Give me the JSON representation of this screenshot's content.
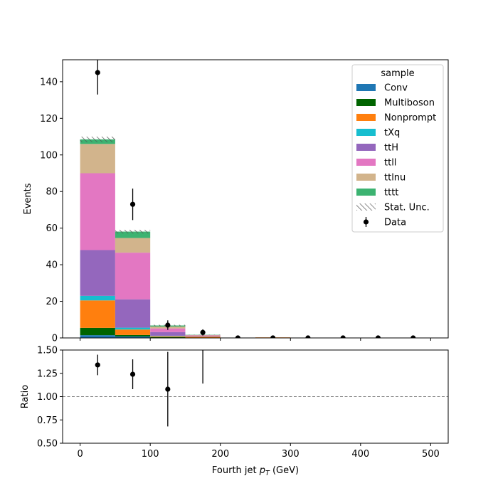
{
  "chart_data": {
    "type": "bar",
    "stacked": true,
    "x_bin_edges": [
      0,
      50,
      100,
      150,
      200,
      250,
      300,
      350,
      400,
      450,
      500
    ],
    "xlabel": "Fourth jet  p_T (GeV)",
    "xlabel_parts": {
      "prefix": "Fourth jet  ",
      "var": "p",
      "sub": "T",
      "suffix": " (GeV)"
    },
    "xlim": [
      -25,
      525
    ],
    "xticks": [
      "0",
      "100",
      "200",
      "300",
      "400",
      "500"
    ],
    "main": {
      "ylabel": "Events",
      "ylim": [
        0,
        152
      ],
      "yticks": [
        "0",
        "20",
        "40",
        "60",
        "80",
        "100",
        "120",
        "140"
      ],
      "legend": {
        "title": "sample",
        "placement": "top-right"
      },
      "series": [
        {
          "name": "Conv",
          "color": "#1f77b4",
          "values": [
            1.5,
            0.8,
            0.2,
            0.05,
            0,
            0,
            0,
            0,
            0,
            0
          ]
        },
        {
          "name": "Multiboson",
          "color": "#006400",
          "values": [
            4.0,
            0.8,
            0.2,
            0.05,
            0,
            0,
            0,
            0,
            0,
            0
          ]
        },
        {
          "name": "Nonprompt",
          "color": "#ff7f0e",
          "values": [
            15.0,
            3.0,
            0.5,
            0.6,
            0.1,
            0.3,
            0,
            0,
            0,
            0
          ]
        },
        {
          "name": "tXq",
          "color": "#17becf",
          "values": [
            2.5,
            1.0,
            0.3,
            0.05,
            0,
            0,
            0,
            0,
            0,
            0
          ]
        },
        {
          "name": "ttH",
          "color": "#9467bd",
          "values": [
            25.0,
            15.5,
            2.0,
            0.3,
            0.1,
            0,
            0,
            0,
            0,
            0
          ]
        },
        {
          "name": "ttll",
          "color": "#e377c2",
          "values": [
            42.0,
            25.5,
            2.0,
            0.3,
            0,
            0,
            0,
            0,
            0,
            0
          ]
        },
        {
          "name": "ttlnu",
          "color": "#d2b48c",
          "values": [
            16.0,
            8.0,
            1.0,
            0.2,
            0,
            0,
            0,
            0,
            0,
            0
          ]
        },
        {
          "name": "tttt",
          "color": "#3cb371",
          "values": [
            2.5,
            3.5,
            0.6,
            0.15,
            0,
            0,
            0,
            0,
            0,
            0
          ]
        }
      ],
      "stat_unc": {
        "name": "Stat. Unc.",
        "values": [
          1.5,
          1.0,
          0.4,
          0.1,
          0,
          0,
          0,
          0,
          0,
          0
        ]
      },
      "data": {
        "name": "Data",
        "x": [
          25,
          75,
          125,
          175,
          225,
          275,
          325,
          375,
          425,
          475
        ],
        "y": [
          145,
          73,
          7,
          3,
          0,
          0,
          0,
          0,
          0,
          0
        ],
        "yerr": [
          12,
          8.6,
          2.6,
          1.7,
          0,
          0,
          0,
          0,
          0,
          0
        ]
      }
    },
    "ratio": {
      "ylabel": "Ratio",
      "ylim": [
        0.5,
        1.5
      ],
      "yticks": [
        "0.50",
        "0.75",
        "1.00",
        "1.25",
        "1.50"
      ],
      "reference_line": 1.0,
      "points": {
        "x": [
          25,
          75,
          125,
          175
        ],
        "y": [
          1.34,
          1.24,
          1.08,
          1.6
        ],
        "yerr": [
          0.11,
          0.16,
          0.4,
          0.46
        ]
      }
    }
  }
}
